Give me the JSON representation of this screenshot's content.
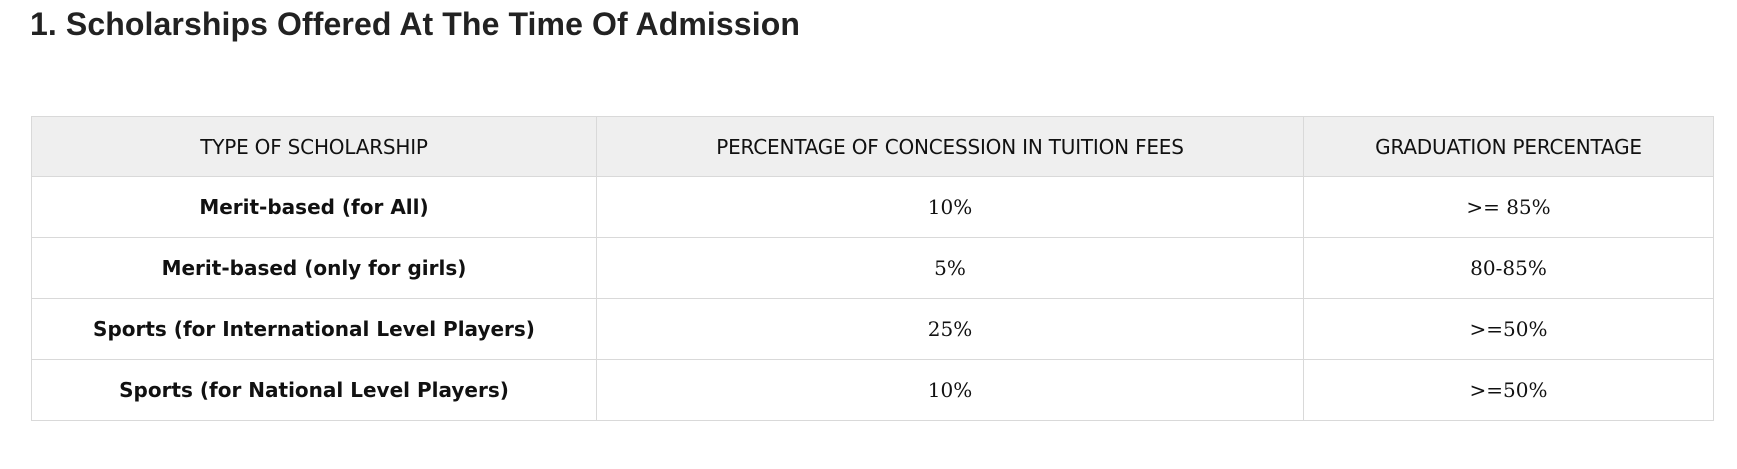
{
  "page": {
    "heading": "1. Scholarships Offered At The Time Of Admission"
  },
  "table": {
    "headers": [
      "TYPE OF SCHOLARSHIP",
      "PERCENTAGE OF CONCESSION IN TUITION FEES",
      "GRADUATION PERCENTAGE"
    ],
    "rows": [
      {
        "type": "Merit-based (for All)",
        "concession": "10%",
        "graduation": ">= 85%"
      },
      {
        "type": "Merit-based (only for girls)",
        "concession": "5%",
        "graduation": "80-85%"
      },
      {
        "type": "Sports (for International Level Players)",
        "concession": "25%",
        "graduation": ">=50%"
      },
      {
        "type": "Sports (for National Level Players)",
        "concession": "10%",
        "graduation": ">=50%"
      }
    ]
  },
  "colors": {
    "text": "#222222",
    "header_bg": "#efefef",
    "border": "#d9d9d9",
    "background": "#ffffff"
  }
}
